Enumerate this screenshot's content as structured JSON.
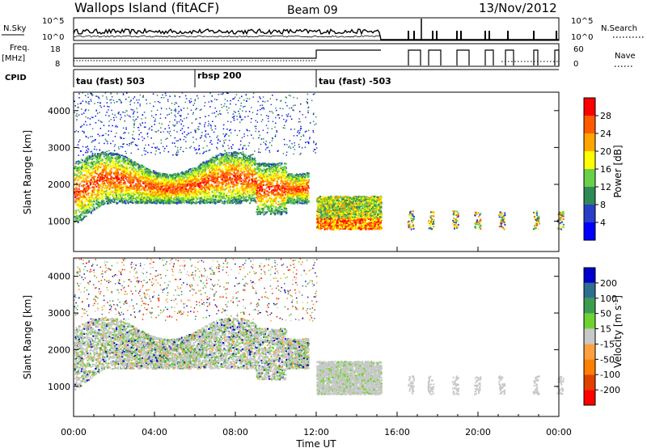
{
  "header": {
    "station": "Wallops Island (fitACF)",
    "beam": "Beam 09",
    "date": "13/Nov/2012"
  },
  "nsky_panel": {
    "left_label": "N.Sky",
    "right_label": "N.Search",
    "ticks": [
      "10^5",
      "10^0"
    ]
  },
  "freq_panel": {
    "left_label_line1": "Freq.",
    "left_label_line2": "[MHz]",
    "left_ticks": [
      "18",
      "8"
    ],
    "right_ticks": [
      "60",
      "0"
    ],
    "right_label": "Nave"
  },
  "cpid_panel": {
    "label": "CPID",
    "programs": [
      {
        "name": "tau (fast) 503",
        "start_hour": 0
      },
      {
        "name": "rbsp 200",
        "start_hour": 6
      },
      {
        "name": "tau (fast) -503",
        "start_hour": 12
      }
    ]
  },
  "colors": {
    "power": [
      "#0000ff",
      "#2840c8",
      "#2e8b57",
      "#6ad04a",
      "#ffff00",
      "#ffa500",
      "#ff5a00",
      "#ff0000"
    ],
    "velocity": [
      "#0000cd",
      "#2e6e8e",
      "#3c9d50",
      "#6fd230",
      "#c8c8c8",
      "#ffa040",
      "#ff8000",
      "#e04000",
      "#ff0000"
    ]
  },
  "chart_data": [
    {
      "type": "heatmap",
      "name": "power",
      "ylabel": "Slant Range [km]",
      "y_ticks": [
        "1000",
        "2000",
        "3000",
        "4000"
      ],
      "ylim": [
        180,
        4500
      ],
      "xlim": [
        0,
        24
      ],
      "colorbar_label": "Power [dB]",
      "colorbar_ticks": [
        "4",
        "8",
        "12",
        "16",
        "20",
        "24",
        "28"
      ],
      "colorbar_range": [
        0,
        32
      ]
    },
    {
      "type": "heatmap",
      "name": "velocity",
      "ylabel": "Slant Range [km]",
      "y_ticks": [
        "1000",
        "2000",
        "3000",
        "4000"
      ],
      "ylim": [
        180,
        4500
      ],
      "xlim": [
        0,
        24
      ],
      "colorbar_label": "Velocity [m s^-1]",
      "colorbar_ticks": [
        "200",
        "100",
        "50",
        "15",
        "-15",
        "-50",
        "-100",
        "-200"
      ]
    }
  ],
  "time_axis": {
    "ticks": [
      "00:00",
      "04:00",
      "08:00",
      "12:00",
      "16:00",
      "20:00",
      "00:00"
    ],
    "xlabel": "Time UT"
  }
}
